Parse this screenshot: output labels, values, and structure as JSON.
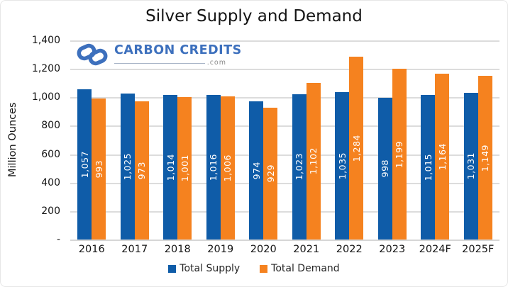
{
  "watermark": {
    "brand": "CARBON CREDITS",
    "domain": ".com"
  },
  "colors": {
    "supply": "#0F5CA8",
    "demand": "#F5821F",
    "grid": "#DCDCDC",
    "axis_text": "#141414",
    "bar_label_text": "#FFFFFF",
    "logo_blue": "#3D70BD",
    "logo_gray": "#8C8C8C"
  },
  "chart_data": {
    "type": "bar",
    "title": "Silver Supply and Demand",
    "ylabel": "Million Ounces",
    "xlabel": "",
    "categories": [
      "2016",
      "2017",
      "2018",
      "2019",
      "2020",
      "2021",
      "2022",
      "2023",
      "2024F",
      "2025F"
    ],
    "series": [
      {
        "name": "Total Supply",
        "color": "#0F5CA8",
        "values": [
          1057,
          1025,
          1014,
          1016,
          974,
          1023,
          1035,
          998,
          1015,
          1031
        ]
      },
      {
        "name": "Total Demand",
        "color": "#F5821F",
        "values": [
          993,
          973,
          1001,
          1006,
          929,
          1102,
          1284,
          1199,
          1164,
          1149
        ]
      }
    ],
    "ylim": [
      0,
      1400
    ],
    "ytick_step": 200,
    "yticks": [
      {
        "label": "1,400",
        "value": 1400
      },
      {
        "label": "1,200",
        "value": 1200
      },
      {
        "label": "1,000",
        "value": 1000
      },
      {
        "label": "800",
        "value": 800
      },
      {
        "label": "600",
        "value": 600
      },
      {
        "label": "400",
        "value": 400
      },
      {
        "label": "200",
        "value": 200
      },
      {
        "label": "-",
        "value": 0
      }
    ],
    "grid": true,
    "legend_position": "bottom",
    "value_labels": "rotated-90-inside-bars"
  }
}
